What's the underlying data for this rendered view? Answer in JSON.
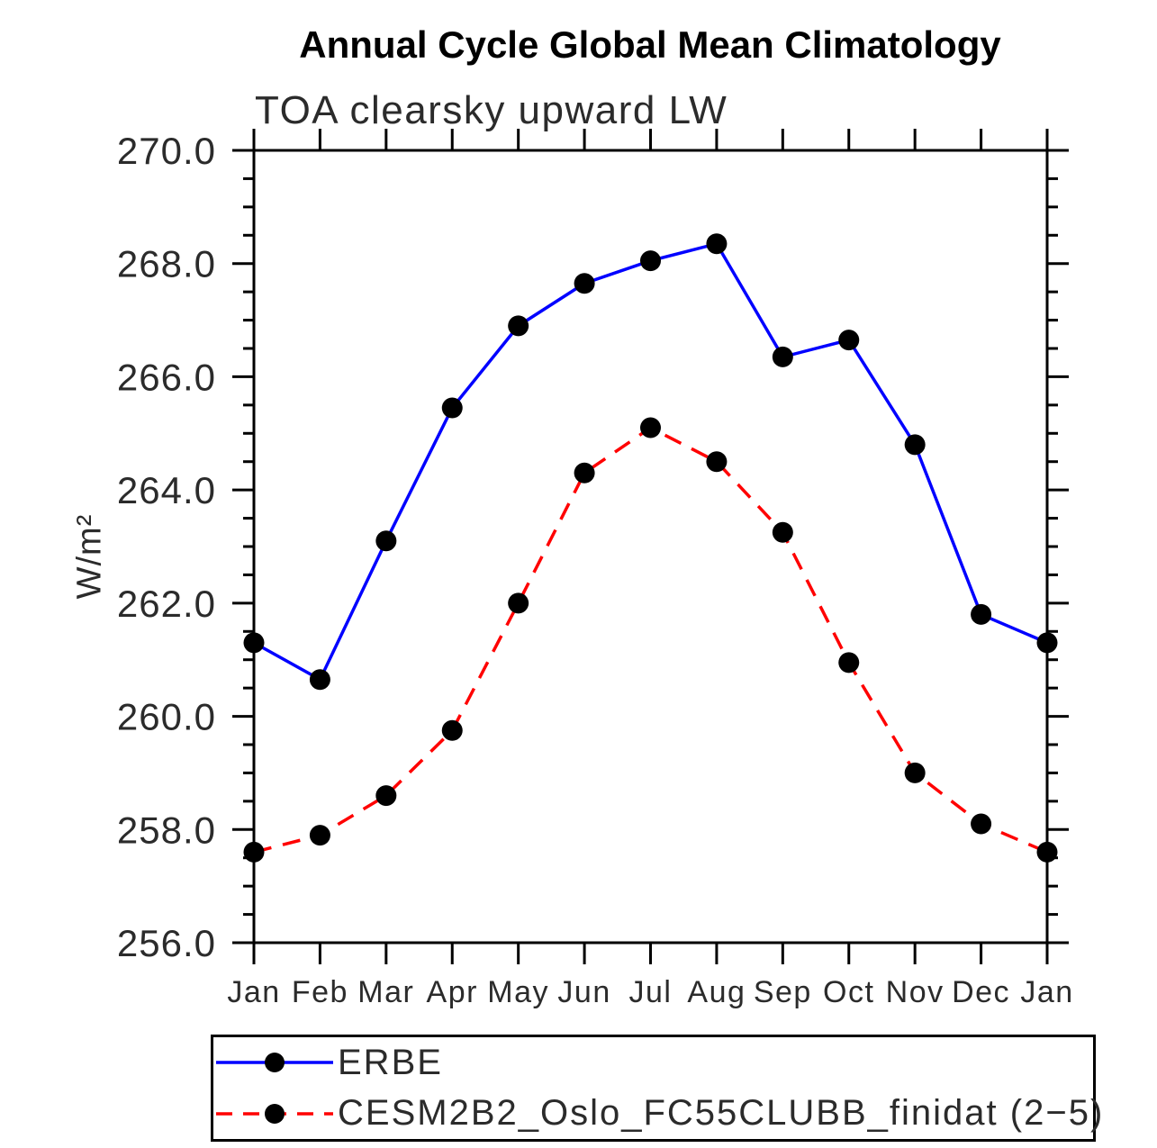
{
  "title": "Annual Cycle Global Mean Climatology",
  "chart_data": {
    "type": "line",
    "subtitle": "TOA clearsky upward LW",
    "ylabel": "W/m²",
    "xlabel": "",
    "ylim": [
      256.0,
      270.0
    ],
    "ytick_major_interval": 2.0,
    "ytick_minor_interval": 0.5,
    "ytick_labels": [
      "256.0",
      "258.0",
      "260.0",
      "262.0",
      "264.0",
      "266.0",
      "268.0",
      "270.0"
    ],
    "grid": false,
    "legend_position": "bottom",
    "x_labels": [
      "Jan",
      "Feb",
      "Mar",
      "Apr",
      "May",
      "Jun",
      "Jul",
      "Aug",
      "Sep",
      "Oct",
      "Nov",
      "Dec",
      "Jan"
    ],
    "series": [
      {
        "name": "ERBE",
        "color": "#0000ff",
        "line_style": "solid",
        "marker": "filled-circle",
        "marker_color": "#000000",
        "values": [
          261.3,
          260.65,
          263.1,
          265.45,
          266.9,
          267.65,
          268.05,
          268.35,
          266.35,
          266.65,
          264.8,
          261.8,
          261.3
        ]
      },
      {
        "name": "CESM2B2_Oslo_FC55CLUBB_finidat (2−5)",
        "color": "#ff0000",
        "line_style": "dashed",
        "marker": "filled-circle",
        "marker_color": "#000000",
        "values": [
          257.6,
          257.9,
          258.6,
          259.75,
          262.0,
          264.3,
          265.1,
          264.5,
          263.25,
          260.95,
          259.0,
          258.1,
          257.6
        ]
      }
    ],
    "axis_color": "#000000"
  }
}
